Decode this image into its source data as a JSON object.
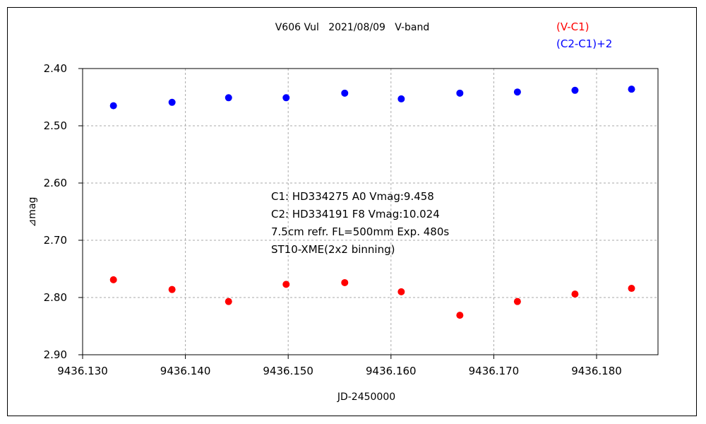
{
  "chart_data": {
    "type": "scatter",
    "title": "V606 Vul   2021/08/09   V-band",
    "xlabel": "JD-2450000",
    "ylabel": "⊿mag",
    "xlim": [
      9436.13,
      9436.1856
    ],
    "ylim": [
      2.4,
      2.9
    ],
    "y_inverted": true,
    "grid": true,
    "legend_position": "top-right",
    "x_ticks": [
      "9436.130",
      "9436.140",
      "9436.150",
      "9436.160",
      "9436.170",
      "9436.180"
    ],
    "y_ticks": [
      "2.40",
      "2.50",
      "2.60",
      "2.70",
      "2.80",
      "2.90"
    ],
    "annotation": [
      "C1: HD334275 A0  Vmag:9.458",
      "C2: HD334191  F8   Vmag:10.024",
      "7.5cm refr. FL=500mm Exp. 480s",
      "ST10-XME(2x2 binning)"
    ],
    "x": [
      9436.133,
      9436.1387,
      9436.1442,
      9436.1498,
      9436.1555,
      9436.161,
      9436.1667,
      9436.1723,
      9436.1779,
      9436.1834
    ],
    "series": [
      {
        "name": "(V-C1)",
        "color": "#ff0000",
        "values": [
          2.769,
          2.786,
          2.807,
          2.777,
          2.774,
          2.79,
          2.831,
          2.807,
          2.794,
          2.784
        ]
      },
      {
        "name": "(C2-C1)+2",
        "color": "#0000ff",
        "values": [
          2.465,
          2.459,
          2.451,
          2.451,
          2.443,
          2.453,
          2.443,
          2.441,
          2.438,
          2.436
        ]
      }
    ]
  }
}
